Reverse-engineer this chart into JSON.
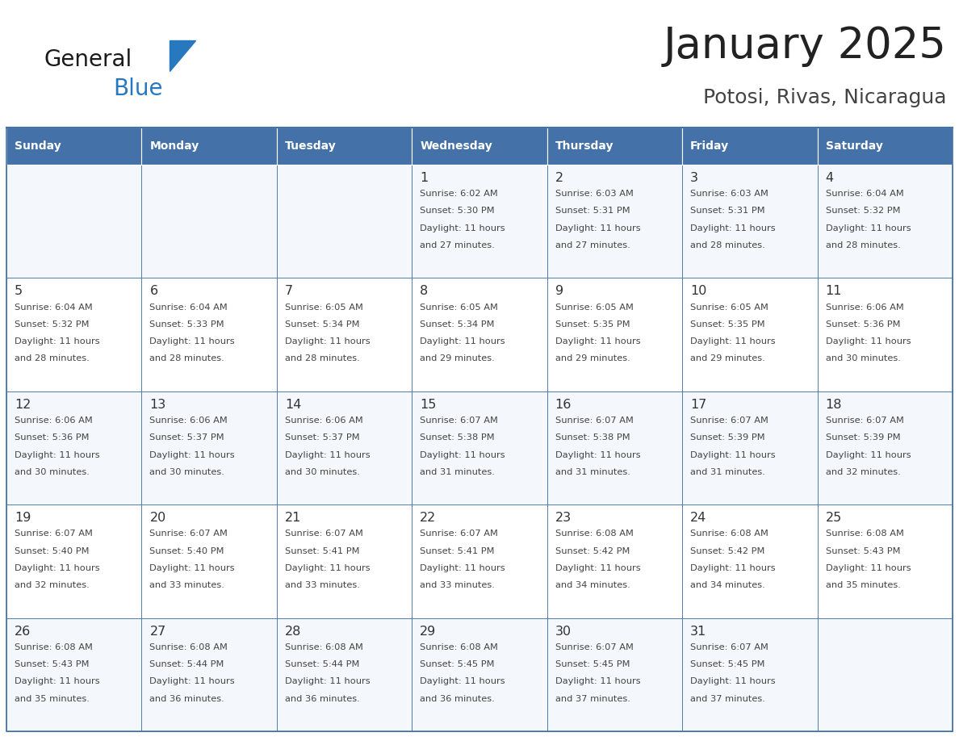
{
  "title": "January 2025",
  "subtitle": "Potosi, Rivas, Nicaragua",
  "days_of_week": [
    "Sunday",
    "Monday",
    "Tuesday",
    "Wednesday",
    "Thursday",
    "Friday",
    "Saturday"
  ],
  "header_bg": "#4472a8",
  "header_text": "#ffffff",
  "cell_bg": "#ffffff",
  "grid_line_color": "#4472a8",
  "day_number_color": "#333333",
  "text_color": "#444444",
  "title_color": "#222222",
  "subtitle_color": "#444444",
  "logo_general_color": "#1a1a1a",
  "logo_blue_color": "#2878c0",
  "calendar": [
    [
      null,
      null,
      null,
      {
        "day": 1,
        "sunrise": "6:02 AM",
        "sunset": "5:30 PM",
        "daylight": "11 hours and 27 minutes."
      },
      {
        "day": 2,
        "sunrise": "6:03 AM",
        "sunset": "5:31 PM",
        "daylight": "11 hours and 27 minutes."
      },
      {
        "day": 3,
        "sunrise": "6:03 AM",
        "sunset": "5:31 PM",
        "daylight": "11 hours and 28 minutes."
      },
      {
        "day": 4,
        "sunrise": "6:04 AM",
        "sunset": "5:32 PM",
        "daylight": "11 hours and 28 minutes."
      }
    ],
    [
      {
        "day": 5,
        "sunrise": "6:04 AM",
        "sunset": "5:32 PM",
        "daylight": "11 hours and 28 minutes."
      },
      {
        "day": 6,
        "sunrise": "6:04 AM",
        "sunset": "5:33 PM",
        "daylight": "11 hours and 28 minutes."
      },
      {
        "day": 7,
        "sunrise": "6:05 AM",
        "sunset": "5:34 PM",
        "daylight": "11 hours and 28 minutes."
      },
      {
        "day": 8,
        "sunrise": "6:05 AM",
        "sunset": "5:34 PM",
        "daylight": "11 hours and 29 minutes."
      },
      {
        "day": 9,
        "sunrise": "6:05 AM",
        "sunset": "5:35 PM",
        "daylight": "11 hours and 29 minutes."
      },
      {
        "day": 10,
        "sunrise": "6:05 AM",
        "sunset": "5:35 PM",
        "daylight": "11 hours and 29 minutes."
      },
      {
        "day": 11,
        "sunrise": "6:06 AM",
        "sunset": "5:36 PM",
        "daylight": "11 hours and 30 minutes."
      }
    ],
    [
      {
        "day": 12,
        "sunrise": "6:06 AM",
        "sunset": "5:36 PM",
        "daylight": "11 hours and 30 minutes."
      },
      {
        "day": 13,
        "sunrise": "6:06 AM",
        "sunset": "5:37 PM",
        "daylight": "11 hours and 30 minutes."
      },
      {
        "day": 14,
        "sunrise": "6:06 AM",
        "sunset": "5:37 PM",
        "daylight": "11 hours and 30 minutes."
      },
      {
        "day": 15,
        "sunrise": "6:07 AM",
        "sunset": "5:38 PM",
        "daylight": "11 hours and 31 minutes."
      },
      {
        "day": 16,
        "sunrise": "6:07 AM",
        "sunset": "5:38 PM",
        "daylight": "11 hours and 31 minutes."
      },
      {
        "day": 17,
        "sunrise": "6:07 AM",
        "sunset": "5:39 PM",
        "daylight": "11 hours and 31 minutes."
      },
      {
        "day": 18,
        "sunrise": "6:07 AM",
        "sunset": "5:39 PM",
        "daylight": "11 hours and 32 minutes."
      }
    ],
    [
      {
        "day": 19,
        "sunrise": "6:07 AM",
        "sunset": "5:40 PM",
        "daylight": "11 hours and 32 minutes."
      },
      {
        "day": 20,
        "sunrise": "6:07 AM",
        "sunset": "5:40 PM",
        "daylight": "11 hours and 33 minutes."
      },
      {
        "day": 21,
        "sunrise": "6:07 AM",
        "sunset": "5:41 PM",
        "daylight": "11 hours and 33 minutes."
      },
      {
        "day": 22,
        "sunrise": "6:07 AM",
        "sunset": "5:41 PM",
        "daylight": "11 hours and 33 minutes."
      },
      {
        "day": 23,
        "sunrise": "6:08 AM",
        "sunset": "5:42 PM",
        "daylight": "11 hours and 34 minutes."
      },
      {
        "day": 24,
        "sunrise": "6:08 AM",
        "sunset": "5:42 PM",
        "daylight": "11 hours and 34 minutes."
      },
      {
        "day": 25,
        "sunrise": "6:08 AM",
        "sunset": "5:43 PM",
        "daylight": "11 hours and 35 minutes."
      }
    ],
    [
      {
        "day": 26,
        "sunrise": "6:08 AM",
        "sunset": "5:43 PM",
        "daylight": "11 hours and 35 minutes."
      },
      {
        "day": 27,
        "sunrise": "6:08 AM",
        "sunset": "5:44 PM",
        "daylight": "11 hours and 36 minutes."
      },
      {
        "day": 28,
        "sunrise": "6:08 AM",
        "sunset": "5:44 PM",
        "daylight": "11 hours and 36 minutes."
      },
      {
        "day": 29,
        "sunrise": "6:08 AM",
        "sunset": "5:45 PM",
        "daylight": "11 hours and 36 minutes."
      },
      {
        "day": 30,
        "sunrise": "6:07 AM",
        "sunset": "5:45 PM",
        "daylight": "11 hours and 37 minutes."
      },
      {
        "day": 31,
        "sunrise": "6:07 AM",
        "sunset": "5:45 PM",
        "daylight": "11 hours and 37 minutes."
      },
      null
    ]
  ]
}
